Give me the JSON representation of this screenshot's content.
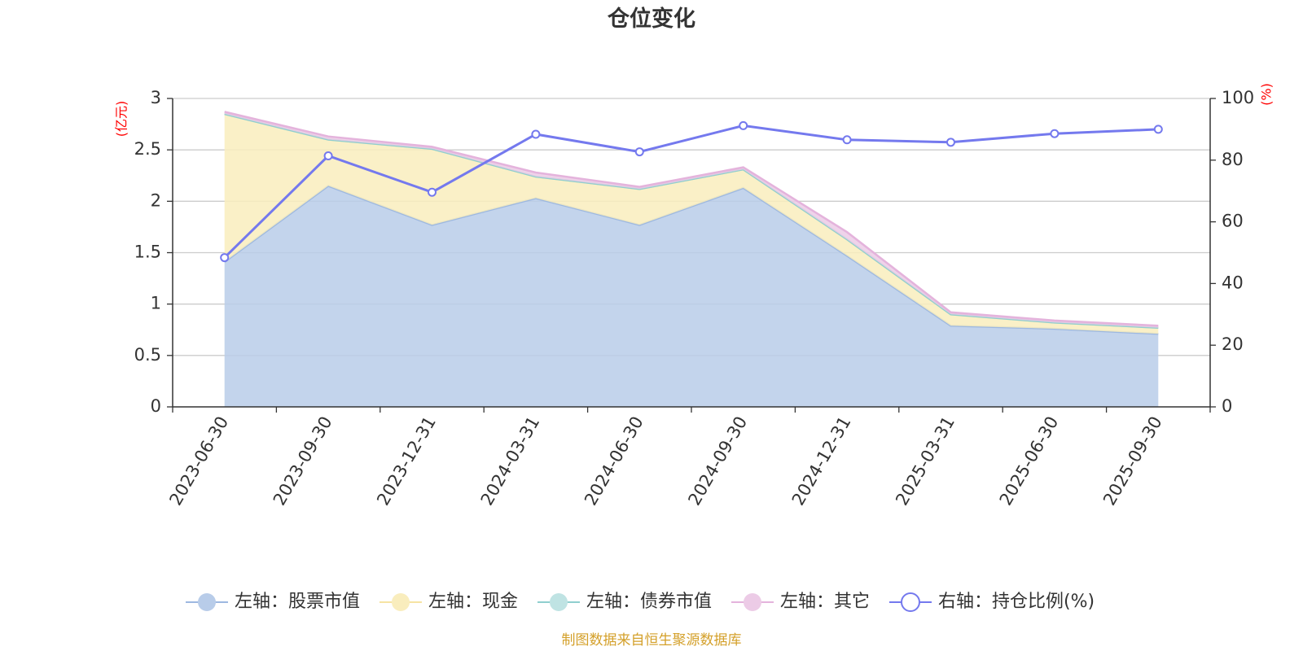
{
  "chart_data": {
    "type": "area",
    "title": "仓位变化",
    "categories": [
      "2023-06-30",
      "2023-09-30",
      "2023-12-31",
      "2024-03-31",
      "2024-06-30",
      "2024-09-30",
      "2024-12-31",
      "2025-03-31",
      "2025-06-30",
      "2025-09-30"
    ],
    "left_axis": {
      "unit": "(亿元)",
      "ylim": [
        0,
        3
      ],
      "ticks": [
        "0",
        "0.5",
        "1",
        "1.5",
        "2",
        "2.5",
        "3"
      ]
    },
    "right_axis": {
      "unit": "(%)",
      "ylim": [
        0,
        100
      ],
      "ticks": [
        "0",
        "20",
        "40",
        "60",
        "80",
        "100"
      ]
    },
    "series": [
      {
        "name": "左轴：股票市值",
        "axis": "left",
        "stack": true,
        "color": "#9db8e0",
        "fill": "#b8cce9",
        "values": [
          1.41,
          2.15,
          1.77,
          2.03,
          1.77,
          2.13,
          1.47,
          0.79,
          0.76,
          0.71
        ]
      },
      {
        "name": "左轴：现金",
        "axis": "left",
        "stack": true,
        "color": "#f6e3a3",
        "fill": "#f9edbd",
        "values": [
          1.44,
          0.45,
          0.74,
          0.21,
          0.35,
          0.18,
          0.16,
          0.11,
          0.06,
          0.06
        ]
      },
      {
        "name": "左轴：债券市值",
        "axis": "left",
        "stack": true,
        "color": "#8fcfcf",
        "fill": "#bfe3e3",
        "values": [
          0,
          0,
          0,
          0,
          0,
          0,
          0,
          0,
          0,
          0
        ]
      },
      {
        "name": "左轴：其它",
        "axis": "left",
        "stack": true,
        "color": "#e4b3dc",
        "fill": "#eccbe6",
        "values": [
          0.02,
          0.03,
          0.02,
          0.04,
          0.02,
          0.02,
          0.07,
          0.02,
          0.02,
          0.02
        ]
      },
      {
        "name": "右轴：持仓比例(%)",
        "axis": "right",
        "type": "line",
        "color": "#7479ee",
        "values": [
          48.4,
          81.4,
          69.6,
          88.4,
          82.7,
          91.2,
          86.6,
          85.8,
          88.6,
          90.0
        ]
      }
    ],
    "legend_position": "bottom",
    "source": "制图数据来自恒生聚源数据库"
  }
}
